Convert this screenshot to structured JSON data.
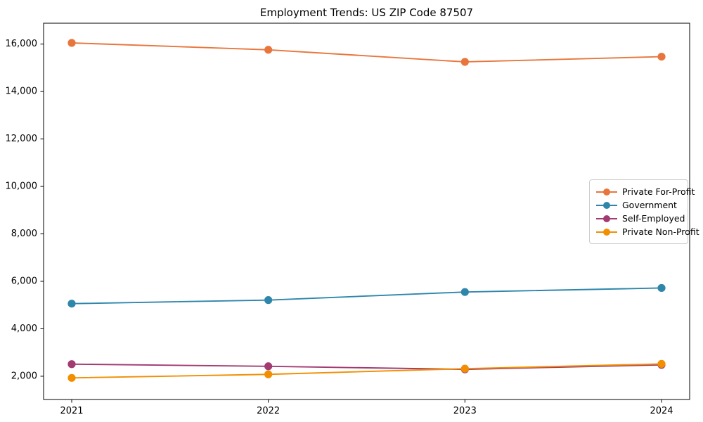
{
  "figure": {
    "background_color": "#ffffff",
    "axis_color": "#000000",
    "tick_label_color": "#000000",
    "legend_border_color": "#cccccc"
  },
  "chart_data": {
    "type": "line",
    "title": "Employment Trends: US ZIP Code 87507",
    "xlabel": "",
    "ylabel": "",
    "grid": false,
    "legend_position": "center right",
    "x": [
      2021,
      2022,
      2023,
      2024
    ],
    "xtick_labels": [
      "2021",
      "2022",
      "2023",
      "2024"
    ],
    "ytick_values": [
      2000,
      4000,
      6000,
      8000,
      10000,
      12000,
      14000,
      16000
    ],
    "ytick_labels": [
      "2,000",
      "4,000",
      "6,000",
      "8,000",
      "10,000",
      "12,000",
      "14,000",
      "16,000"
    ],
    "xlim": [
      2020.857,
      2024.143
    ],
    "ylim": [
      1020,
      16880
    ],
    "series": [
      {
        "name": "Private For-Profit",
        "color": "#E8763C",
        "values": [
          16050,
          15760,
          15250,
          15470
        ]
      },
      {
        "name": "Government",
        "color": "#2E86AB",
        "values": [
          5060,
          5210,
          5550,
          5720
        ]
      },
      {
        "name": "Self-Employed",
        "color": "#A23B72",
        "values": [
          2510,
          2420,
          2290,
          2480
        ]
      },
      {
        "name": "Private Non-Profit",
        "color": "#F18F01",
        "values": [
          1930,
          2080,
          2320,
          2520
        ]
      }
    ]
  }
}
